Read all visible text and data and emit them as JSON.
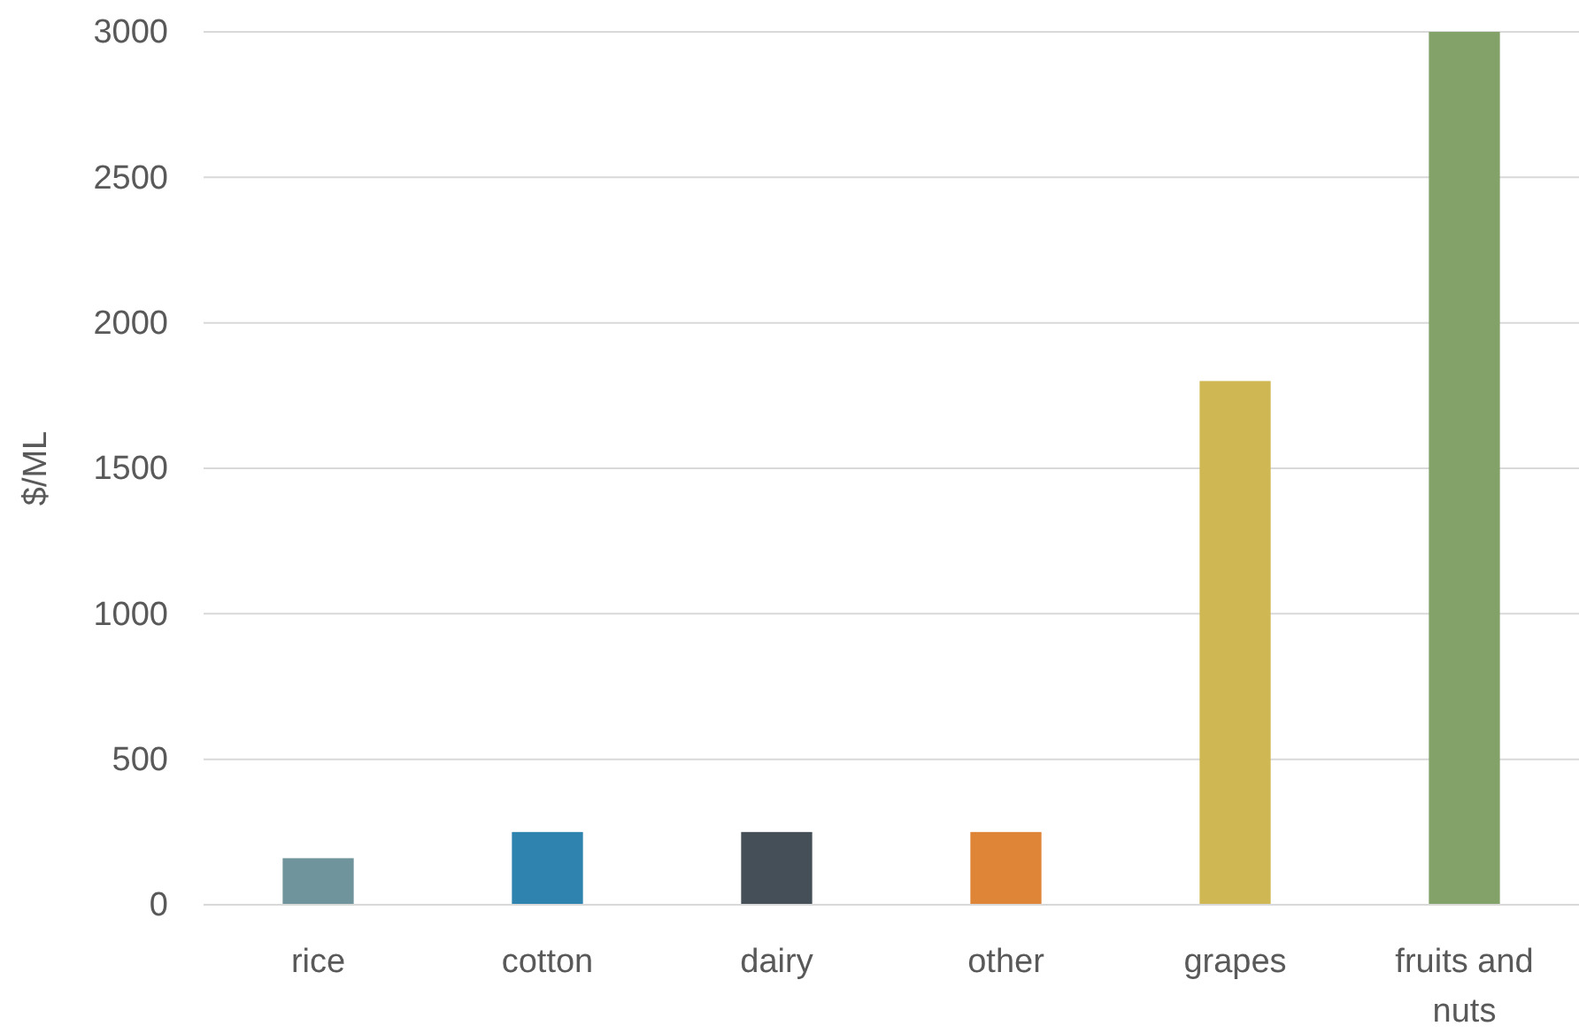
{
  "chart_data": {
    "type": "bar",
    "ylabel": "$/ML",
    "categories": [
      "rice",
      "cotton",
      "dairy",
      "other",
      "grapes",
      "fruits and nuts"
    ],
    "values": [
      160,
      250,
      250,
      250,
      1800,
      3000
    ],
    "colors": [
      "#6f949c",
      "#2e84ae",
      "#454f57",
      "#de8537",
      "#cfb853",
      "#82a26a"
    ],
    "ylim": [
      0,
      3000
    ],
    "yticks": [
      0,
      500,
      1000,
      1500,
      2000,
      2500,
      3000
    ],
    "grid": "y"
  }
}
